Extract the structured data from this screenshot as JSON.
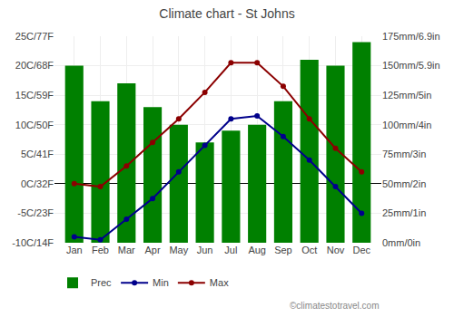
{
  "chart_data": {
    "type": "bar",
    "title": "Climate chart - St Johns",
    "categories": [
      "Jan",
      "Feb",
      "Mar",
      "Apr",
      "May",
      "Jun",
      "Jul",
      "Aug",
      "Sep",
      "Oct",
      "Nov",
      "Dec"
    ],
    "series": [
      {
        "name": "Prec",
        "type": "bar",
        "axis": "y2",
        "color": "#008000",
        "values": [
          150,
          120,
          135,
          115,
          100,
          85,
          95,
          100,
          120,
          155,
          150,
          170
        ]
      },
      {
        "name": "Min",
        "type": "line",
        "marker": "circle",
        "color": "#00008B",
        "values": [
          -9,
          -9.5,
          -6,
          -2.5,
          2,
          6.5,
          11,
          11.5,
          8,
          4,
          -0.5,
          -5
        ]
      },
      {
        "name": "Max",
        "type": "line",
        "marker": "circle",
        "color": "#8B0000",
        "values": [
          0,
          -0.5,
          3,
          7,
          11,
          15.5,
          20.5,
          20.5,
          16.5,
          11,
          6,
          2
        ]
      }
    ],
    "ylim": [
      -10,
      25
    ],
    "yticks": [
      {
        "value": -10,
        "label": "-10C/14F"
      },
      {
        "value": -5,
        "label": "-5C/23F"
      },
      {
        "value": 0,
        "label": "0C/32F"
      },
      {
        "value": 5,
        "label": "5C/41F"
      },
      {
        "value": 10,
        "label": "10C/50F"
      },
      {
        "value": 15,
        "label": "15C/59F"
      },
      {
        "value": 20,
        "label": "20C/68F"
      },
      {
        "value": 25,
        "label": "25C/77F"
      }
    ],
    "y2lim": [
      0,
      175
    ],
    "y2ticks": [
      {
        "value": 0,
        "label": "0mm/0in"
      },
      {
        "value": 25,
        "label": "25mm/1in"
      },
      {
        "value": 50,
        "label": "50mm/2in"
      },
      {
        "value": 75,
        "label": "75mm/3in"
      },
      {
        "value": 100,
        "label": "100mm/4in"
      },
      {
        "value": 125,
        "label": "125mm/5in"
      },
      {
        "value": 150,
        "label": "150mm/5.9in"
      },
      {
        "value": 175,
        "label": "175mm/6.9in"
      }
    ],
    "grid": true,
    "legend": "bottom",
    "annotations": [
      "©climatestotravel.com"
    ]
  }
}
